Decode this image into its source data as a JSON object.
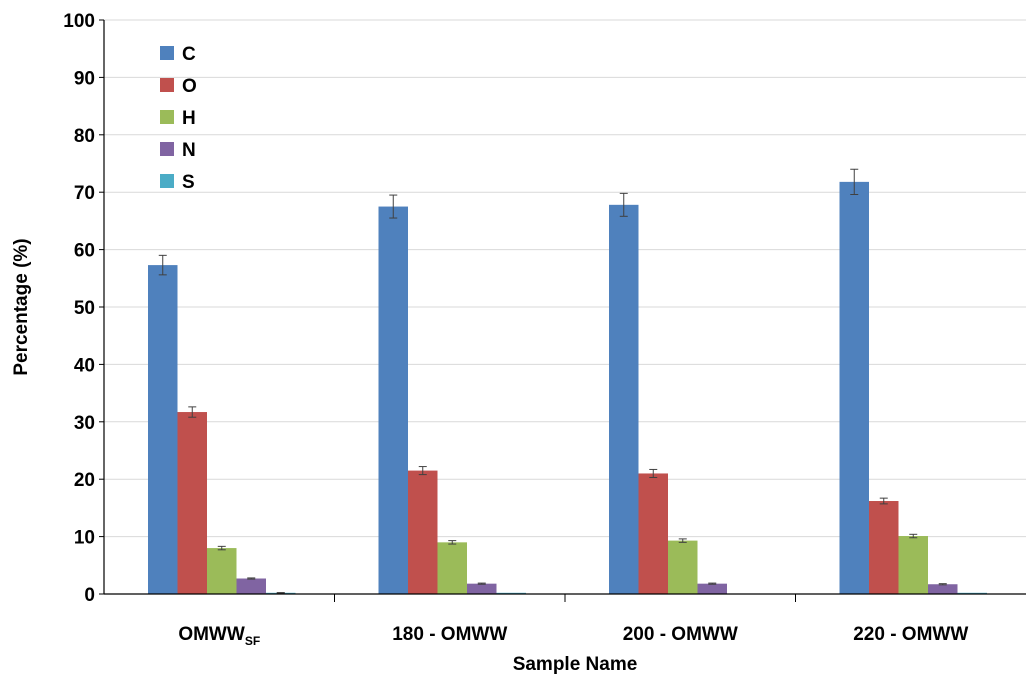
{
  "chart_data": {
    "type": "bar",
    "categories": [
      {
        "main": "OMWW",
        "sub": "SF"
      },
      {
        "main": "180 - OMWW",
        "sub": ""
      },
      {
        "main": "200 - OMWW",
        "sub": ""
      },
      {
        "main": "220 - OMWW",
        "sub": ""
      }
    ],
    "series": [
      {
        "name": "C",
        "color": "#4f81bd",
        "values": [
          57.3,
          67.5,
          67.8,
          71.8
        ],
        "errors": [
          1.7,
          2.0,
          2.0,
          2.2
        ]
      },
      {
        "name": "O",
        "color": "#c0504d",
        "values": [
          31.7,
          21.5,
          21.0,
          16.2
        ],
        "errors": [
          0.9,
          0.7,
          0.7,
          0.5
        ]
      },
      {
        "name": "H",
        "color": "#9bbb59",
        "values": [
          8.0,
          9.0,
          9.3,
          10.1
        ],
        "errors": [
          0.3,
          0.3,
          0.3,
          0.3
        ]
      },
      {
        "name": "N",
        "color": "#8064a2",
        "values": [
          2.7,
          1.8,
          1.8,
          1.7
        ],
        "errors": [
          0.1,
          0.1,
          0.1,
          0.1
        ]
      },
      {
        "name": "S",
        "color": "#4bacc6",
        "values": [
          0.2,
          0.1,
          0.0,
          0.1
        ],
        "errors": [
          0.05,
          0.0,
          0.0,
          0.0
        ]
      }
    ],
    "title": "",
    "xlabel": "Sample Name",
    "ylabel": "Percentage (%)",
    "ylim": [
      0,
      100
    ],
    "yticks": [
      0,
      10,
      20,
      30,
      40,
      50,
      60,
      70,
      80,
      90,
      100
    ],
    "grid": true,
    "legend": "top-left"
  }
}
